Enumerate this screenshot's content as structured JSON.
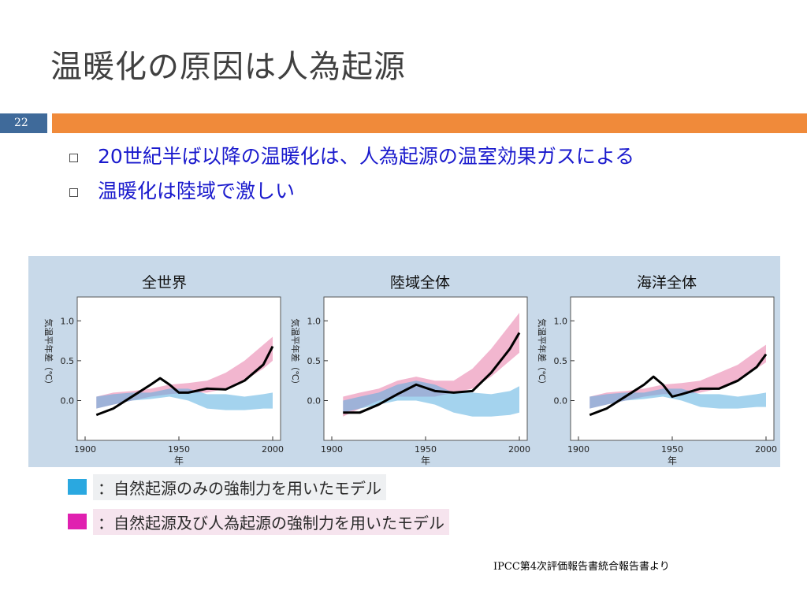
{
  "slide": {
    "title": "温暖化の原因は人為起源",
    "page_number": "22",
    "bullets": [
      "20世紀半ば以降の温暖化は、人為起源の温室効果ガスによる",
      "温暖化は陸域で激しい"
    ],
    "legend": [
      {
        "text": "：自然起源のみの強制力を用いたモデル",
        "color": "#2aa8e0"
      },
      {
        "text": "：自然起源及び人為起源の強制力を用いたモデル",
        "color": "#e020b0"
      }
    ],
    "source": "IPCC第4次評価報告書統合報告書より"
  },
  "chart_data": [
    {
      "type": "line",
      "title": "全世界",
      "xlabel": "年",
      "ylabel": "気温平年差（℃）",
      "xlim": [
        1900,
        2000
      ],
      "ylim": [
        -0.4,
        1.2
      ],
      "x_ticks": [
        "1900",
        "1950",
        "2000"
      ],
      "y_ticks": [
        "0.0",
        "0.5",
        "1.0"
      ],
      "natural_band": {
        "x": [
          1906,
          1915,
          1925,
          1935,
          1945,
          1955,
          1965,
          1975,
          1985,
          1995,
          2000
        ],
        "low": [
          -0.1,
          -0.05,
          0.0,
          0.02,
          0.05,
          0.0,
          -0.1,
          -0.12,
          -0.12,
          -0.1,
          -0.1
        ],
        "high": [
          0.05,
          0.08,
          0.1,
          0.1,
          0.15,
          0.15,
          0.08,
          0.08,
          0.05,
          0.08,
          0.1
        ]
      },
      "combined_band": {
        "x": [
          1906,
          1915,
          1925,
          1935,
          1945,
          1955,
          1965,
          1975,
          1985,
          1995,
          2000
        ],
        "low": [
          -0.1,
          -0.05,
          0.0,
          0.05,
          0.08,
          0.1,
          0.1,
          0.15,
          0.25,
          0.4,
          0.5
        ],
        "high": [
          0.05,
          0.1,
          0.12,
          0.15,
          0.2,
          0.22,
          0.25,
          0.35,
          0.5,
          0.7,
          0.8
        ]
      },
      "observed": {
        "x": [
          1906,
          1915,
          1925,
          1935,
          1940,
          1945,
          1950,
          1955,
          1965,
          1975,
          1985,
          1995,
          2000
        ],
        "y": [
          -0.18,
          -0.1,
          0.05,
          0.2,
          0.28,
          0.2,
          0.1,
          0.1,
          0.15,
          0.14,
          0.25,
          0.45,
          0.68
        ]
      }
    },
    {
      "type": "line",
      "title": "陸域全体",
      "xlabel": "年",
      "ylabel": "気温平年差（℃）",
      "xlim": [
        1900,
        2000
      ],
      "ylim": [
        -0.4,
        1.2
      ],
      "x_ticks": [
        "1900",
        "1950",
        "2000"
      ],
      "y_ticks": [
        "0.0",
        "0.5",
        "1.0"
      ],
      "natural_band": {
        "x": [
          1906,
          1915,
          1925,
          1935,
          1945,
          1955,
          1965,
          1975,
          1985,
          1995,
          2000
        ],
        "low": [
          -0.15,
          -0.1,
          -0.05,
          0.0,
          0.0,
          -0.05,
          -0.15,
          -0.2,
          -0.2,
          -0.18,
          -0.15
        ],
        "high": [
          0.0,
          0.05,
          0.1,
          0.2,
          0.25,
          0.2,
          0.1,
          0.1,
          0.08,
          0.12,
          0.18
        ]
      },
      "combined_band": {
        "x": [
          1906,
          1915,
          1925,
          1935,
          1945,
          1955,
          1965,
          1975,
          1985,
          1995,
          2000
        ],
        "low": [
          -0.2,
          -0.1,
          0.0,
          0.05,
          0.05,
          0.05,
          0.1,
          0.15,
          0.3,
          0.5,
          0.6
        ],
        "high": [
          0.05,
          0.1,
          0.15,
          0.25,
          0.3,
          0.25,
          0.25,
          0.4,
          0.65,
          0.95,
          1.1
        ]
      },
      "observed": {
        "x": [
          1906,
          1915,
          1925,
          1935,
          1945,
          1955,
          1965,
          1975,
          1985,
          1995,
          2000
        ],
        "y": [
          -0.15,
          -0.15,
          -0.05,
          0.08,
          0.2,
          0.12,
          0.1,
          0.12,
          0.35,
          0.65,
          0.85
        ]
      }
    },
    {
      "type": "line",
      "title": "海洋全体",
      "xlabel": "年",
      "ylabel": "気温平年差（℃）",
      "xlim": [
        1900,
        2000
      ],
      "ylim": [
        -0.4,
        1.2
      ],
      "x_ticks": [
        "1900",
        "1950",
        "2000"
      ],
      "y_ticks": [
        "0.0",
        "0.5",
        "1.0"
      ],
      "natural_band": {
        "x": [
          1906,
          1915,
          1925,
          1935,
          1945,
          1955,
          1965,
          1975,
          1985,
          1995,
          2000
        ],
        "low": [
          -0.1,
          -0.05,
          0.0,
          0.02,
          0.05,
          0.0,
          -0.08,
          -0.1,
          -0.1,
          -0.08,
          -0.08
        ],
        "high": [
          0.05,
          0.08,
          0.1,
          0.1,
          0.15,
          0.15,
          0.08,
          0.08,
          0.05,
          0.08,
          0.1
        ]
      },
      "combined_band": {
        "x": [
          1906,
          1915,
          1925,
          1935,
          1945,
          1955,
          1965,
          1975,
          1985,
          1995,
          2000
        ],
        "low": [
          -0.1,
          -0.05,
          0.0,
          0.05,
          0.08,
          0.08,
          0.1,
          0.15,
          0.25,
          0.4,
          0.48
        ],
        "high": [
          0.05,
          0.1,
          0.12,
          0.15,
          0.2,
          0.22,
          0.25,
          0.35,
          0.45,
          0.62,
          0.7
        ]
      },
      "observed": {
        "x": [
          1906,
          1915,
          1925,
          1935,
          1940,
          1945,
          1950,
          1955,
          1965,
          1975,
          1985,
          1995,
          2000
        ],
        "y": [
          -0.18,
          -0.1,
          0.05,
          0.2,
          0.3,
          0.2,
          0.05,
          0.08,
          0.15,
          0.15,
          0.25,
          0.42,
          0.58
        ]
      }
    }
  ]
}
